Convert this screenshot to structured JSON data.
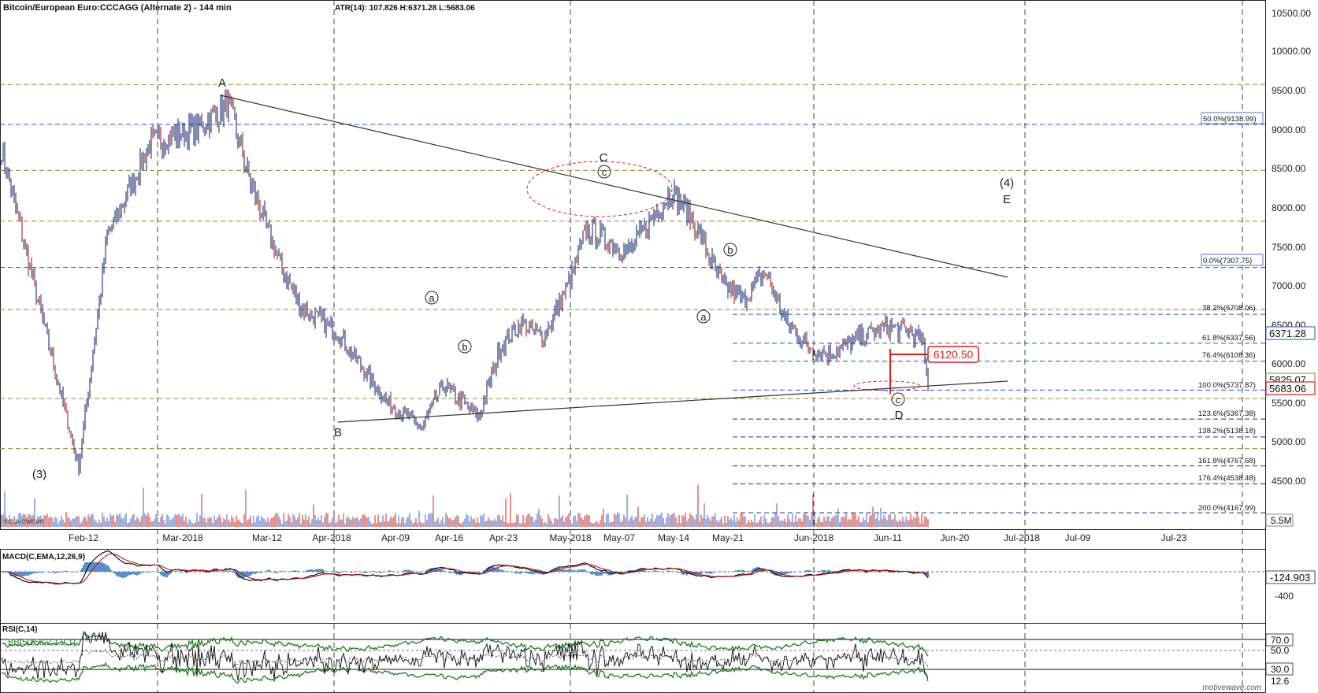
{
  "header": {
    "title": "Bitcoin/European Euro:CCCAGG (Alternate 2) - 144 min",
    "stats": "ATR(14): 107.826  H:6371.28  L:5683.06"
  },
  "price_axis": {
    "ticks": [
      "10500.00",
      "10000.00",
      "9500.00",
      "9000.00",
      "8500.00",
      "8000.00",
      "7500.00",
      "7000.00",
      "6500.00",
      "6000.00",
      "5500.00",
      "5000.00",
      "4500.00"
    ],
    "last_price": "6371.28",
    "resistance_price": "5825.07",
    "current_price": "5683.06",
    "volume_label": "5.5M"
  },
  "date_axis": {
    "ticks": [
      "Feb-12",
      "Mar-2018",
      "Mar-12",
      "Apr-2018",
      "Apr-09",
      "Apr-16",
      "Apr-23",
      "May-2018",
      "May-07",
      "May-14",
      "May-21",
      "Jun-2018",
      "Jun-11",
      "Jun-20",
      "Jul-2018",
      "Jul-09",
      "Jul-23"
    ]
  },
  "fibonacci": {
    "upper": {
      "label": "50.0%(9138.99)"
    },
    "levels": [
      {
        "label": "0.0%(7307.75)"
      },
      {
        "label": "38.2%(6708.06)"
      },
      {
        "label": "61.8%(6337.56)"
      },
      {
        "label": "76.4%(6108.36)"
      },
      {
        "label": "100.0%(5737.87)"
      },
      {
        "label": "123.6%(5367.38)"
      },
      {
        "label": "138.2%(5138.18)"
      },
      {
        "label": "161.8%(4767.68)"
      },
      {
        "label": "176.4%(4538.48)"
      },
      {
        "label": "200.0%(4167.99)"
      }
    ]
  },
  "target_box": "6120.50",
  "wave_labels": {
    "w3": "(3)",
    "A": "A",
    "B": "B",
    "C": "C",
    "c_circ": "c",
    "a1": "a",
    "b1": "b",
    "a2": "a",
    "b2": "b",
    "c2": "c",
    "D": "D",
    "w4": "(4)",
    "E": "E"
  },
  "watermark_small": "motivewave",
  "macd": {
    "label": "MACD(C,EMA,12,26,9)",
    "value": "-124.903",
    "tick": "-400"
  },
  "rsi": {
    "label": "RSI(C,14)",
    "bb_label": "BB(50,50,2,1.2,1)",
    "ticks": [
      "70.0",
      "50.0",
      "30.0"
    ],
    "value": "12.6"
  },
  "footer_watermark": "motivewave.com",
  "colors": {
    "candles": "#0b1a66",
    "wick_down": "#8a1010",
    "fib_blue": "#2255cc",
    "olive": "#8c8c3a",
    "red": "#e01c1c",
    "macd_hist": "#5b8ec9",
    "rsi_band": "#1f7a1f"
  },
  "chart_data": [
    {
      "type": "candlestick",
      "title": "Bitcoin/European Euro:CCCAGG (Alternate 2) - 144 min",
      "x_range": [
        "2018-02-01",
        "2018-07-28"
      ],
      "ylim": [
        4200,
        10600
      ],
      "y_ticks": [
        4500,
        5000,
        5500,
        6000,
        6500,
        7000,
        7500,
        8000,
        8500,
        9000,
        9500,
        10000,
        10500
      ],
      "x": [
        "2018-02-01",
        "2018-02-06",
        "2018-02-12",
        "2018-02-16",
        "2018-02-22",
        "2018-03-01",
        "2018-03-05",
        "2018-03-08",
        "2018-03-12",
        "2018-03-15",
        "2018-03-20",
        "2018-03-27",
        "2018-04-01",
        "2018-04-04",
        "2018-04-09",
        "2018-04-12",
        "2018-04-15",
        "2018-04-18",
        "2018-04-22",
        "2018-04-24",
        "2018-04-30",
        "2018-05-04",
        "2018-05-06",
        "2018-05-09",
        "2018-05-13",
        "2018-05-16",
        "2018-05-19",
        "2018-05-22",
        "2018-05-25",
        "2018-05-28",
        "2018-06-01",
        "2018-06-05",
        "2018-06-08",
        "2018-06-10",
        "2018-06-11"
      ],
      "close": [
        8900,
        7000,
        4750,
        7700,
        8900,
        9100,
        9400,
        8400,
        7400,
        6800,
        6500,
        5600,
        5250,
        5800,
        5400,
        6300,
        6600,
        6400,
        7200,
        7800,
        7500,
        8050,
        8300,
        7900,
        7100,
        6900,
        7250,
        6600,
        6300,
        6200,
        6400,
        6550,
        6500,
        6371,
        5683
      ],
      "wave_labels": [
        "(3)",
        "A",
        "B",
        "C",
        "c",
        "a",
        "b",
        "a",
        "b",
        "c",
        "D",
        "(4)",
        "E"
      ],
      "fib_levels": [
        {
          "pct": "0.0%",
          "value": 7307.75
        },
        {
          "pct": "38.2%",
          "value": 6708.06
        },
        {
          "pct": "61.8%",
          "value": 6337.56
        },
        {
          "pct": "76.4%",
          "value": 6108.36
        },
        {
          "pct": "100.0%",
          "value": 5737.87
        },
        {
          "pct": "123.6%",
          "value": 5367.38
        },
        {
          "pct": "138.2%",
          "value": 5138.18
        },
        {
          "pct": "161.8%",
          "value": 4767.68
        },
        {
          "pct": "176.4%",
          "value": 4538.48
        },
        {
          "pct": "200.0%",
          "value": 4167.99
        }
      ],
      "fib_upper": {
        "pct": "50.0%",
        "value": 9138.99
      },
      "olive_levels": [
        9650,
        8550,
        7900,
        6770,
        5630,
        4990
      ],
      "trendlines": [
        {
          "from": [
            "2018-03-05",
            9450
          ],
          "to": [
            "2018-07-01",
            7100
          ]
        },
        {
          "from": [
            "2018-04-01",
            5250
          ],
          "to": [
            "2018-07-01",
            5780
          ]
        }
      ],
      "target": 6120.5,
      "last": 6371.28,
      "low": 5683.06,
      "volume_max": "5.5M"
    },
    {
      "type": "line",
      "title": "MACD(C,EMA,12,26,9)",
      "last_value": -124.903
    },
    {
      "type": "line",
      "title": "RSI(C,14)",
      "ylim": [
        0,
        100
      ],
      "reference_lines": [
        70,
        50,
        30
      ],
      "last_value": 12.6
    }
  ]
}
